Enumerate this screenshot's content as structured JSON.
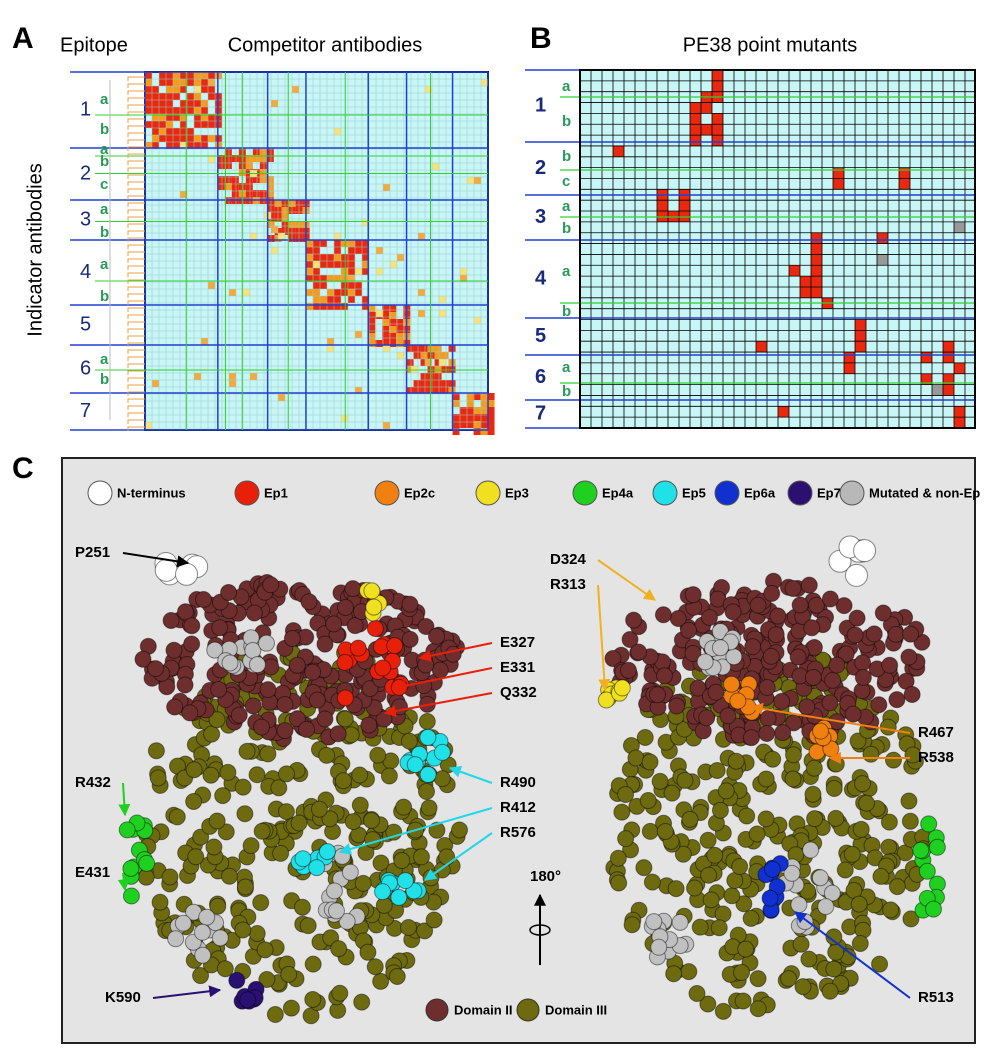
{
  "panels": [
    {
      "label": "A",
      "row_header": "Epitope",
      "title": "Competitor antibodies",
      "y_axis_label": "Indicator antibodies",
      "epitopes": [
        {
          "number": "1",
          "subgroups": [
            "a",
            "b"
          ]
        },
        {
          "number": "2",
          "subgroups": [
            "a",
            "b",
            "c"
          ]
        },
        {
          "number": "3",
          "subgroups": [
            "a",
            "b"
          ]
        },
        {
          "number": "4",
          "subgroups": [
            "a",
            "b"
          ]
        },
        {
          "number": "5",
          "subgroups": []
        },
        {
          "number": "6",
          "subgroups": [
            "a",
            "b"
          ]
        },
        {
          "number": "7",
          "subgroups": []
        }
      ]
    },
    {
      "label": "B",
      "title": "PE38 point mutants",
      "epitopes": [
        {
          "number": "1",
          "subgroups": [
            "a",
            "b"
          ]
        },
        {
          "number": "2",
          "subgroups": [
            "b",
            "c"
          ]
        },
        {
          "number": "3",
          "subgroups": [
            "a",
            "b"
          ]
        },
        {
          "number": "4",
          "subgroups": [
            "a",
            "b"
          ]
        },
        {
          "number": "5",
          "subgroups": []
        },
        {
          "number": "6",
          "subgroups": [
            "a",
            "b"
          ]
        },
        {
          "number": "7",
          "subgroups": []
        }
      ]
    },
    {
      "label": "C",
      "legend": [
        "N-terminus",
        "Ep1",
        "Ep2c",
        "Ep3",
        "Ep4a",
        "Ep5",
        "Ep6a",
        "Ep7",
        "Mutated & non-Ep"
      ],
      "domain_legend": [
        "Domain II",
        "Domain III"
      ],
      "residues": [
        "P251",
        "E327",
        "E331",
        "Q332",
        "R490",
        "R412",
        "R576",
        "R432",
        "E431",
        "K590",
        "D324",
        "R313",
        "R467",
        "R538",
        "R513"
      ],
      "rotation": "180°"
    }
  ]
}
